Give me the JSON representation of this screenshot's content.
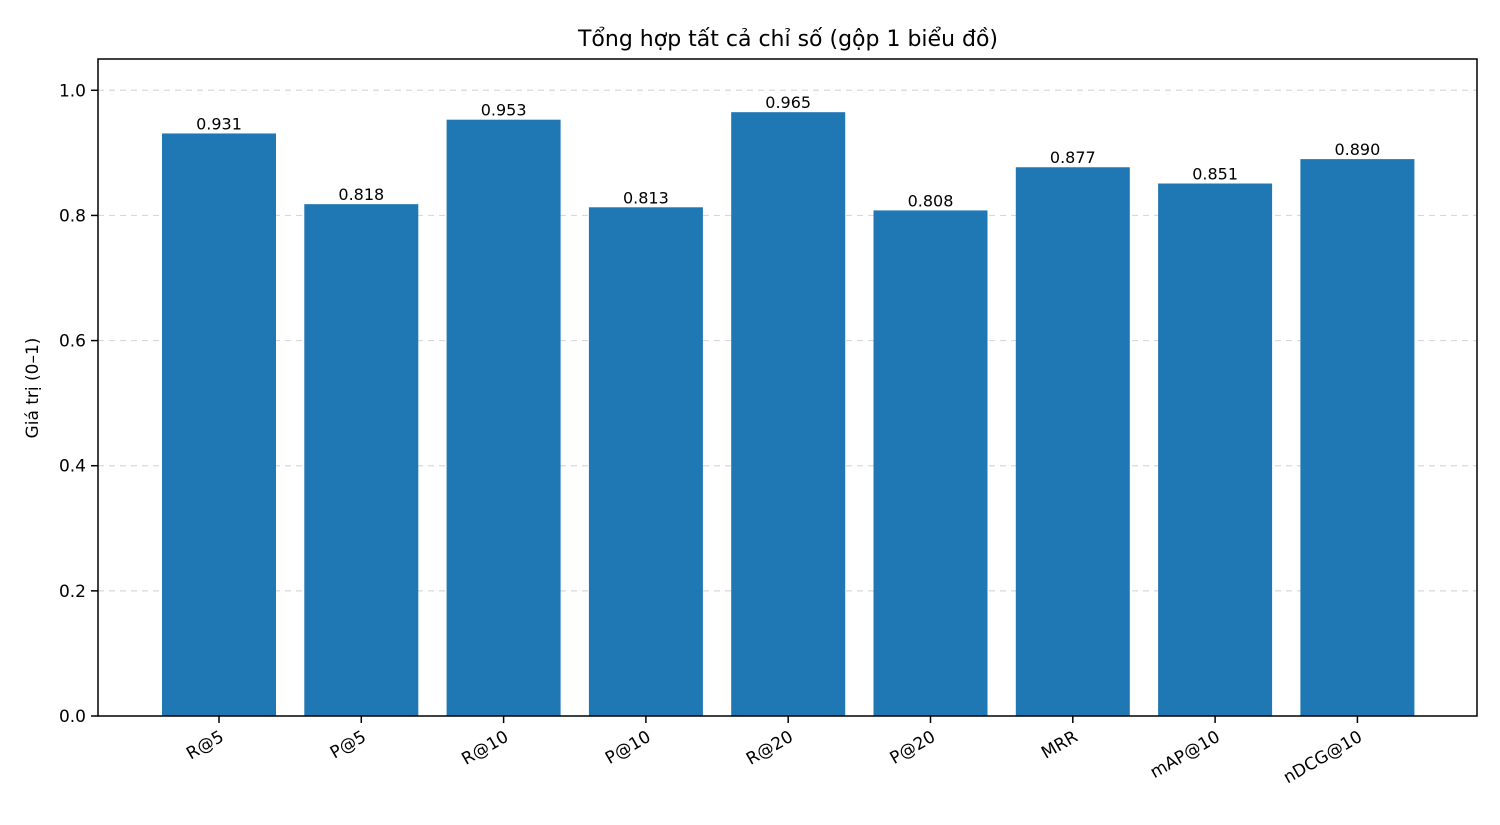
{
  "chart_data": {
    "type": "bar",
    "title": "Tổng hợp tất cả chỉ số (gộp 1 biểu đồ)",
    "xlabel": "",
    "ylabel": "Giá trị (0–1)",
    "categories": [
      "R@5",
      "P@5",
      "R@10",
      "P@10",
      "R@20",
      "P@20",
      "MRR",
      "mAP@10",
      "nDCG@10"
    ],
    "values": [
      0.931,
      0.818,
      0.953,
      0.813,
      0.965,
      0.808,
      0.877,
      0.851,
      0.89
    ],
    "data_labels": [
      "0.931",
      "0.818",
      "0.953",
      "0.813",
      "0.965",
      "0.808",
      "0.877",
      "0.851",
      "0.890"
    ],
    "ylim": [
      0,
      1.05
    ],
    "yticks": [
      0.0,
      0.2,
      0.4,
      0.6,
      0.8,
      1.0
    ],
    "ytick_labels": [
      "0.0",
      "0.2",
      "0.4",
      "0.6",
      "0.8",
      "1.0"
    ],
    "grid": "y-dashed",
    "legend": "none",
    "bar_color": "#1f77b4"
  }
}
